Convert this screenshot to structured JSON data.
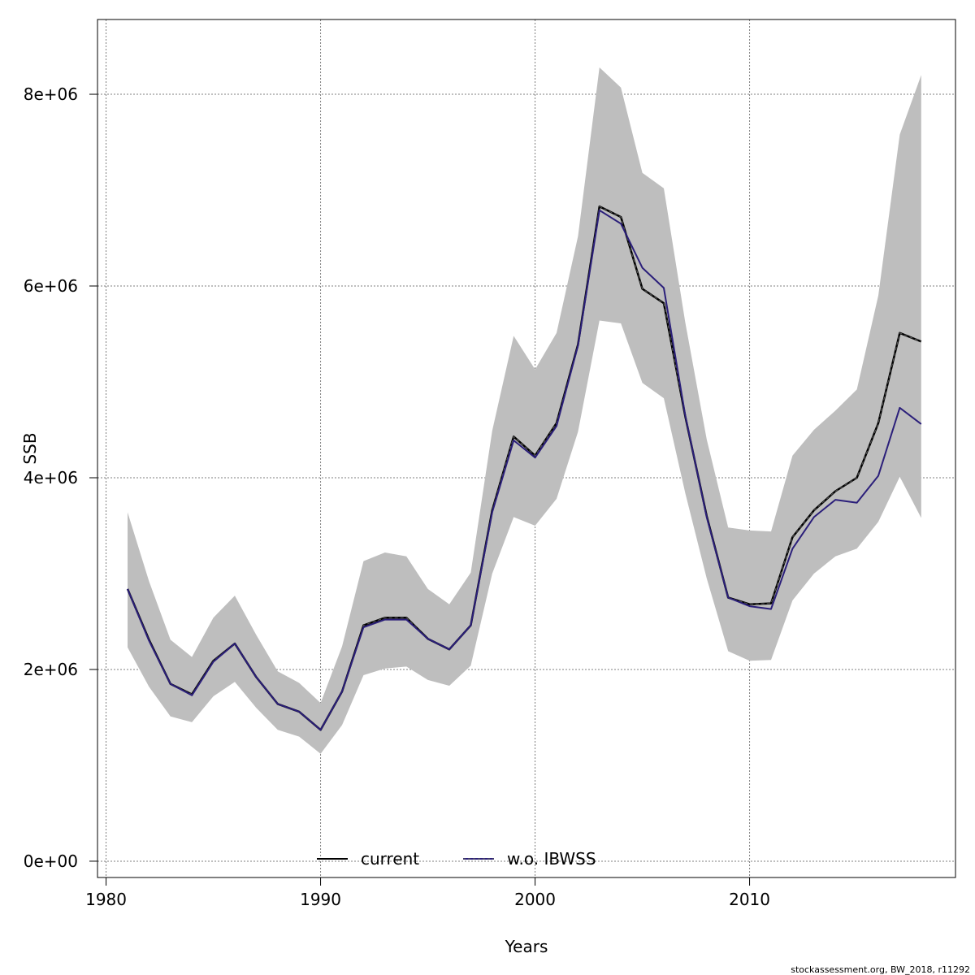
{
  "chart_data": {
    "type": "line",
    "xlabel": "Years",
    "ylabel": "SSB",
    "xlim": [
      1979.6,
      2019.6
    ],
    "ylim": [
      -170000,
      8780000
    ],
    "x_ticks": [
      1980,
      1990,
      2000,
      2010
    ],
    "x_tick_labels": [
      "1980",
      "1990",
      "2000",
      "2010"
    ],
    "y_ticks": [
      0,
      2000000,
      4000000,
      6000000,
      8000000
    ],
    "y_tick_labels": [
      "0e+00",
      "2e+06",
      "4e+06",
      "6e+06",
      "8e+06"
    ],
    "grid": true,
    "legend_position": "bottom",
    "x": [
      1981,
      1982,
      1983,
      1984,
      1985,
      1986,
      1987,
      1988,
      1989,
      1990,
      1991,
      1992,
      1993,
      1994,
      1995,
      1996,
      1997,
      1998,
      1999,
      2000,
      2001,
      2002,
      2003,
      2004,
      2005,
      2006,
      2007,
      2008,
      2009,
      2010,
      2011,
      2012,
      2013,
      2014,
      2015,
      2016,
      2017,
      2018
    ],
    "band": {
      "lower": [
        2230000,
        1820000,
        1510000,
        1450000,
        1720000,
        1870000,
        1600000,
        1370000,
        1300000,
        1120000,
        1420000,
        1940000,
        2010000,
        2030000,
        1890000,
        1830000,
        2040000,
        3000000,
        3590000,
        3500000,
        3780000,
        4480000,
        5640000,
        5610000,
        4990000,
        4830000,
        3840000,
        2950000,
        2190000,
        2090000,
        2100000,
        2720000,
        3000000,
        3180000,
        3260000,
        3540000,
        4010000,
        3580000
      ],
      "upper": [
        3640000,
        2920000,
        2310000,
        2130000,
        2540000,
        2770000,
        2360000,
        1980000,
        1860000,
        1650000,
        2240000,
        3130000,
        3220000,
        3180000,
        2840000,
        2680000,
        3010000,
        4490000,
        5480000,
        5130000,
        5510000,
        6520000,
        8280000,
        8070000,
        7180000,
        7020000,
        5620000,
        4400000,
        3480000,
        3450000,
        3440000,
        4230000,
        4500000,
        4700000,
        4920000,
        5900000,
        7580000,
        8200000
      ],
      "color": "#bebebe"
    },
    "series": [
      {
        "name": "current",
        "color": "#000000",
        "values": [
          2840000,
          2310000,
          1850000,
          1740000,
          2090000,
          2270000,
          1920000,
          1640000,
          1560000,
          1370000,
          1770000,
          2460000,
          2540000,
          2540000,
          2320000,
          2210000,
          2460000,
          3660000,
          4430000,
          4230000,
          4570000,
          5390000,
          6830000,
          6720000,
          5970000,
          5820000,
          4640000,
          3600000,
          2750000,
          2680000,
          2690000,
          3380000,
          3660000,
          3860000,
          4000000,
          4570000,
          5510000,
          5420000
        ]
      },
      {
        "name": "w.o. IBWSS",
        "color": "#2b1f7a",
        "values": [
          2840000,
          2300000,
          1850000,
          1730000,
          2080000,
          2270000,
          1920000,
          1640000,
          1560000,
          1370000,
          1770000,
          2440000,
          2520000,
          2520000,
          2320000,
          2210000,
          2460000,
          3640000,
          4390000,
          4210000,
          4540000,
          5380000,
          6790000,
          6650000,
          6190000,
          5980000,
          4650000,
          3590000,
          2750000,
          2660000,
          2630000,
          3260000,
          3590000,
          3770000,
          3740000,
          4020000,
          4730000,
          4560000
        ]
      }
    ],
    "footer": "stockassessment.org, BW_2018, r11292"
  }
}
